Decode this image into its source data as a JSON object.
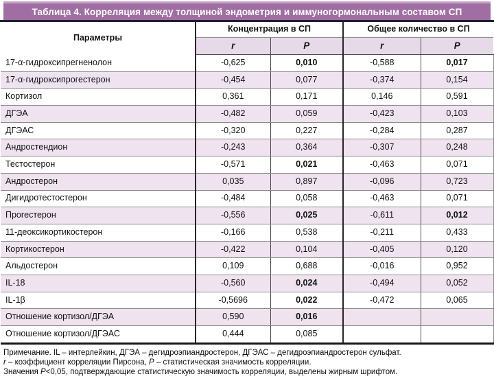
{
  "title": "Таблица 4. Корреляция между толщиной эндометрия и иммуногормональным составом СП",
  "colors": {
    "title_bg": "#a06ea2",
    "title_highlight": "#c7a3c8",
    "dark_rule": "#211d2e",
    "subheader_bg": "#e7dae8",
    "row_alt_bg": "#eee3ef",
    "border_dark": "#262626",
    "border_gray": "#8c8c8c"
  },
  "table": {
    "param_header": "Параметры",
    "group_headers": [
      "Концентрация в СП",
      "Общее количество в СП"
    ],
    "sub_headers": [
      "r",
      "P",
      "r",
      "P"
    ],
    "rows": [
      {
        "param": "17-α-гидроксипрегненолон",
        "values": [
          "-0,625",
          "0,010",
          "-0,588",
          "0,017"
        ],
        "bold": [
          false,
          true,
          false,
          true
        ]
      },
      {
        "param": "17-α-гидроксипрогестерон",
        "values": [
          "-0,454",
          "0,077",
          "-0,374",
          "0,154"
        ],
        "bold": [
          false,
          false,
          false,
          false
        ]
      },
      {
        "param": "Кортизол",
        "values": [
          "0,361",
          "0,171",
          "0,146",
          "0,591"
        ],
        "bold": [
          false,
          false,
          false,
          false
        ]
      },
      {
        "param": "ДГЭА",
        "values": [
          "-0,482",
          "0,059",
          "-0,423",
          "0,103"
        ],
        "bold": [
          false,
          false,
          false,
          false
        ]
      },
      {
        "param": "ДГЭАС",
        "values": [
          "-0,320",
          "0,227",
          "-0,284",
          "0,287"
        ],
        "bold": [
          false,
          false,
          false,
          false
        ]
      },
      {
        "param": "Андростендион",
        "values": [
          "-0,243",
          "0,364",
          "-0,307",
          "0,248"
        ],
        "bold": [
          false,
          false,
          false,
          false
        ]
      },
      {
        "param": "Тестостерон",
        "values": [
          "-0,571",
          "0,021",
          "-0,463",
          "0,071"
        ],
        "bold": [
          false,
          true,
          false,
          false
        ]
      },
      {
        "param": "Андростерон",
        "values": [
          "0,035",
          "0,897",
          "-0,096",
          "0,723"
        ],
        "bold": [
          false,
          false,
          false,
          false
        ]
      },
      {
        "param": "Дигидротестостерон",
        "values": [
          "-0,484",
          "0,058",
          "-0,463",
          "0,071"
        ],
        "bold": [
          false,
          false,
          false,
          false
        ]
      },
      {
        "param": "Прогестерон",
        "values": [
          "-0,556",
          "0,025",
          "-0,611",
          "0,012"
        ],
        "bold": [
          false,
          true,
          false,
          true
        ]
      },
      {
        "param": "11-деоксикортикостерон",
        "values": [
          "-0,166",
          "0,538",
          "-0,211",
          "0,433"
        ],
        "bold": [
          false,
          false,
          false,
          false
        ]
      },
      {
        "param": "Кортикостерон",
        "values": [
          "-0,422",
          "0,104",
          "-0,405",
          "0,120"
        ],
        "bold": [
          false,
          false,
          false,
          false
        ]
      },
      {
        "param": "Альдостерон",
        "values": [
          "0,109",
          "0,688",
          "-0,016",
          "0,952"
        ],
        "bold": [
          false,
          false,
          false,
          false
        ]
      },
      {
        "param": "IL-18",
        "values": [
          "-0,560",
          "0,024",
          "-0,494",
          "0,052"
        ],
        "bold": [
          false,
          true,
          false,
          false
        ]
      },
      {
        "param": "IL-1β",
        "values": [
          "-0,5696",
          "0,022",
          "-0,472",
          "0,065"
        ],
        "bold": [
          false,
          true,
          false,
          false
        ]
      },
      {
        "param": "Отношение кортизол/ДГЭА",
        "values": [
          "0,590",
          "0,016",
          "",
          ""
        ],
        "bold": [
          false,
          true,
          false,
          false
        ]
      },
      {
        "param": "Отношение кортизол/ДГЭАС",
        "values": [
          "0,444",
          "0,085",
          "",
          ""
        ],
        "bold": [
          false,
          false,
          false,
          false
        ]
      }
    ]
  },
  "footnotes": [
    {
      "segments": [
        {
          "text": "Примечание. IL – интерлейкин, ДГЭА – дегидроэпиандростерон, ДГЭАС – дегидроэпиандростерон сульфат.",
          "italic": false
        }
      ]
    },
    {
      "segments": [
        {
          "text": "r",
          "italic": true
        },
        {
          "text": " – коэффициент корреляции Пирсона, ",
          "italic": false
        },
        {
          "text": "P",
          "italic": true
        },
        {
          "text": " – статистическая значимость корреляции.",
          "italic": false
        }
      ]
    },
    {
      "segments": [
        {
          "text": "Значения ",
          "italic": false
        },
        {
          "text": "P",
          "italic": true
        },
        {
          "text": "<0,05, подтверждающие статистическую значимость корреляции, выделены жирным шрифтом.",
          "italic": false
        }
      ]
    }
  ]
}
